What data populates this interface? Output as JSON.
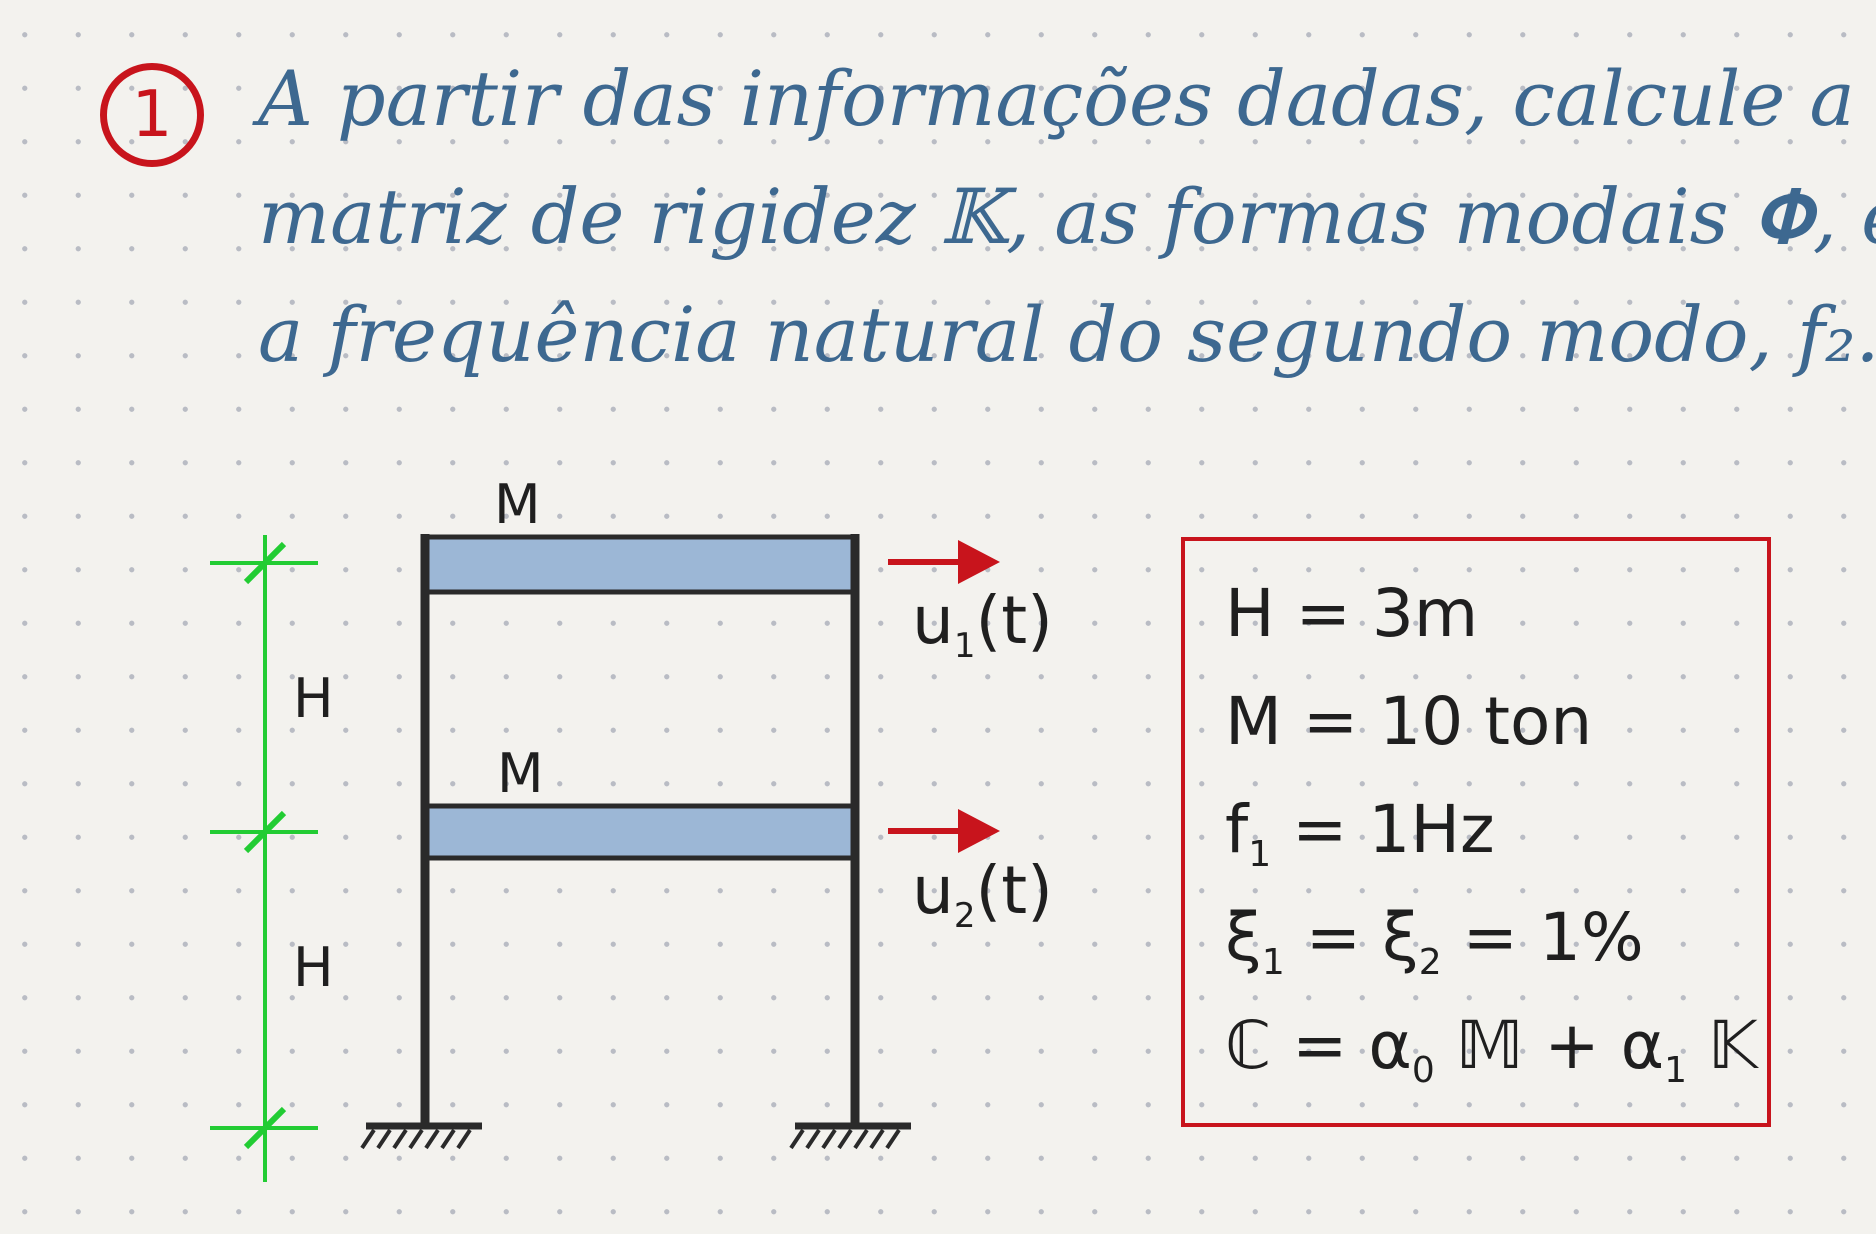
{
  "question": {
    "number": "1",
    "lines": [
      "A partir das informações dadas, calcule a",
      "matriz de rigidez 𝕂, as formas modais 𝚽, e",
      "a frequência natural do segundo modo, f₂."
    ]
  },
  "frame": {
    "mass_top": "M",
    "mass_middle": "M",
    "height_upper": "H",
    "height_lower": "H",
    "disp_top": {
      "base": "u",
      "sub": "1",
      "tail": "(t)"
    },
    "disp_middle": {
      "base": "u",
      "sub": "2",
      "tail": "(t)"
    }
  },
  "given": {
    "h": "H = 3m",
    "m": "M = 10 ton",
    "f1": {
      "base": "f",
      "sub": "1",
      "rest": " = 1Hz"
    },
    "xi": {
      "a": "ξ",
      "a_sub": "1",
      "mid": " = ξ",
      "b_sub": "2",
      "rest": " = 1%"
    },
    "c": {
      "pre": "ℂ = α",
      "sub0": "0",
      "mid": " 𝕄 + α",
      "sub1": "1",
      "rest": " 𝕂"
    }
  },
  "colors": {
    "ink_blue": "#3d6890",
    "red": "#c8141c",
    "green": "#22cc33",
    "beam_fill": "#9cb7d6",
    "frame": "#2a2a2a"
  }
}
